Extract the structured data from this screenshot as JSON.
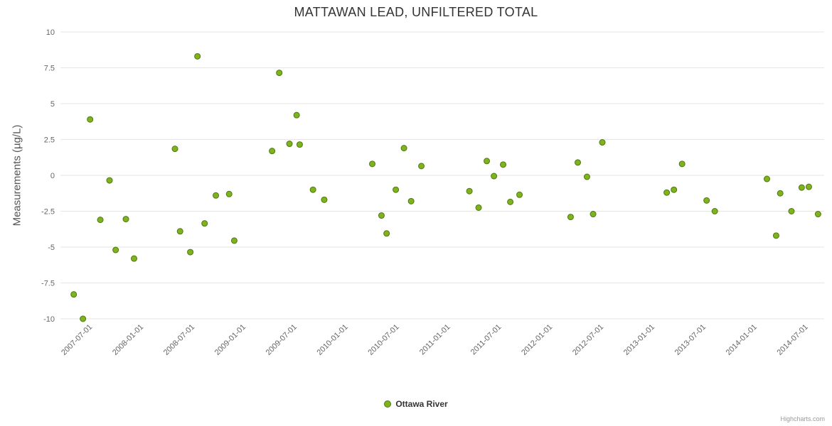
{
  "chart_data": {
    "type": "scatter",
    "title": "MATTAWAN LEAD, UNFILTERED TOTAL",
    "xlabel": "",
    "ylabel": "Measurements (µg/L)",
    "xlim": [
      2007.22,
      2014.69
    ],
    "ylim": [
      -10,
      10
    ],
    "grid": "horizontal",
    "grid_color": "#e6e6e6",
    "background_color": "#ffffff",
    "legend_position": "bottom-center",
    "y_ticks": [
      {
        "value": 10,
        "label": "10"
      },
      {
        "value": 7.5,
        "label": "7.5"
      },
      {
        "value": 5,
        "label": "5"
      },
      {
        "value": 2.5,
        "label": "2.5"
      },
      {
        "value": 0,
        "label": "0"
      },
      {
        "value": -2.5,
        "label": "-2.5"
      },
      {
        "value": -5,
        "label": "-5"
      },
      {
        "value": -7.5,
        "label": "-7.5"
      },
      {
        "value": -10,
        "label": "-10"
      }
    ],
    "x_ticks": [
      {
        "value": 2007.5,
        "label": "2007-07-01"
      },
      {
        "value": 2008.0,
        "label": "2008-01-01"
      },
      {
        "value": 2008.5,
        "label": "2008-07-01"
      },
      {
        "value": 2009.0,
        "label": "2009-01-01"
      },
      {
        "value": 2009.5,
        "label": "2009-07-01"
      },
      {
        "value": 2010.0,
        "label": "2010-01-01"
      },
      {
        "value": 2010.5,
        "label": "2010-07-01"
      },
      {
        "value": 2011.0,
        "label": "2011-01-01"
      },
      {
        "value": 2011.5,
        "label": "2011-07-01"
      },
      {
        "value": 2012.0,
        "label": "2012-01-01"
      },
      {
        "value": 2012.5,
        "label": "2012-07-01"
      },
      {
        "value": 2013.0,
        "label": "2013-01-01"
      },
      {
        "value": 2013.5,
        "label": "2013-07-01"
      },
      {
        "value": 2014.0,
        "label": "2014-01-01"
      },
      {
        "value": 2014.5,
        "label": "2014-07-01"
      }
    ],
    "series": [
      {
        "name": "Ottawa River",
        "marker": "circle",
        "marker_radius": 4,
        "color": "#7db41e",
        "border_color": "#50770f",
        "points": [
          [
            2007.35,
            -8.3
          ],
          [
            2007.44,
            -10.0
          ],
          [
            2007.51,
            3.9
          ],
          [
            2007.61,
            -3.1
          ],
          [
            2007.7,
            -0.35
          ],
          [
            2007.76,
            -5.2
          ],
          [
            2007.86,
            -3.05
          ],
          [
            2007.94,
            -5.8
          ],
          [
            2008.34,
            1.85
          ],
          [
            2008.39,
            -3.9
          ],
          [
            2008.49,
            -5.35
          ],
          [
            2008.56,
            8.3
          ],
          [
            2008.63,
            -3.35
          ],
          [
            2008.74,
            -1.4
          ],
          [
            2008.87,
            -1.3
          ],
          [
            2008.92,
            -4.55
          ],
          [
            2009.29,
            1.7
          ],
          [
            2009.36,
            7.15
          ],
          [
            2009.46,
            2.2
          ],
          [
            2009.53,
            4.2
          ],
          [
            2009.56,
            2.15
          ],
          [
            2009.69,
            -1.0
          ],
          [
            2009.8,
            -1.7
          ],
          [
            2010.27,
            0.8
          ],
          [
            2010.36,
            -2.8
          ],
          [
            2010.41,
            -4.05
          ],
          [
            2010.5,
            -1.0
          ],
          [
            2010.58,
            1.9
          ],
          [
            2010.65,
            -1.8
          ],
          [
            2010.75,
            0.65
          ],
          [
            2011.22,
            -1.1
          ],
          [
            2011.31,
            -2.25
          ],
          [
            2011.39,
            1.0
          ],
          [
            2011.46,
            -0.05
          ],
          [
            2011.55,
            0.75
          ],
          [
            2011.62,
            -1.85
          ],
          [
            2011.71,
            -1.35
          ],
          [
            2012.21,
            -2.9
          ],
          [
            2012.28,
            0.9
          ],
          [
            2012.37,
            -0.1
          ],
          [
            2012.43,
            -2.7
          ],
          [
            2012.52,
            2.3
          ],
          [
            2013.15,
            -1.2
          ],
          [
            2013.22,
            -1.0
          ],
          [
            2013.3,
            0.8
          ],
          [
            2013.54,
            -1.75
          ],
          [
            2013.62,
            -2.5
          ],
          [
            2014.13,
            -0.25
          ],
          [
            2014.22,
            -4.2
          ],
          [
            2014.26,
            -1.25
          ],
          [
            2014.37,
            -2.5
          ],
          [
            2014.47,
            -0.85
          ],
          [
            2014.54,
            -0.8
          ],
          [
            2014.63,
            -2.7
          ]
        ]
      }
    ]
  },
  "credits": {
    "text": "Highcharts.com"
  }
}
